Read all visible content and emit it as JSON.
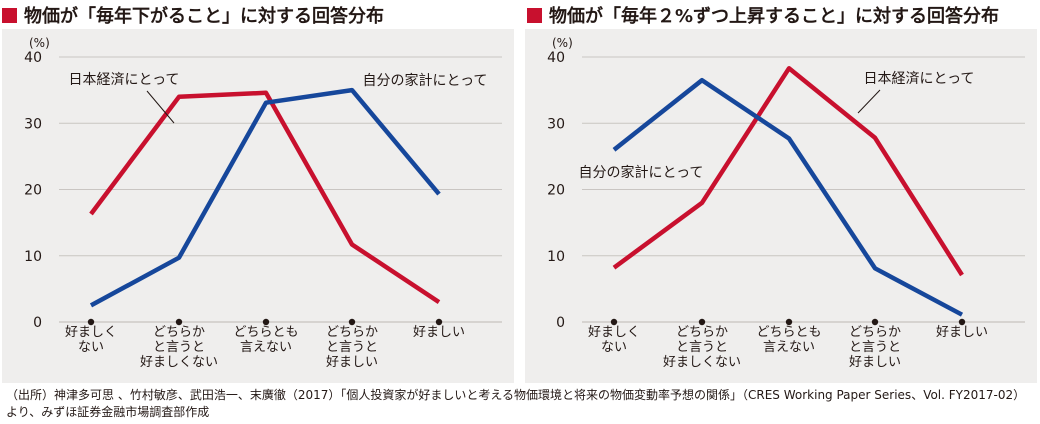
{
  "colors": {
    "red": "#c8102e",
    "blue": "#16479b",
    "background": "#efeeed",
    "grid": "#c9c5c2",
    "square": "#c8102e"
  },
  "categories": [
    [
      "好ましく",
      "ない"
    ],
    [
      "どちらか",
      "と言うと",
      "好ましくない"
    ],
    [
      "どちらとも",
      "言えない"
    ],
    [
      "どちらか",
      "と言うと",
      "好ましい"
    ],
    [
      "好ましい"
    ]
  ],
  "chart_data": [
    {
      "type": "line",
      "title": "物価が「毎年下がること」に対する回答分布",
      "ylabel": "(%)",
      "ylim": [
        0,
        40
      ],
      "yticks": [
        0,
        10,
        20,
        30,
        40
      ],
      "categories": [
        "好ましくない",
        "どちらかと言うと好ましくない",
        "どちらとも言えない",
        "どちらかと言うと好ましい",
        "好ましい"
      ],
      "grid": true,
      "series": [
        {
          "name": "日本経済にとって",
          "color": "#c8102e",
          "values": [
            16.3,
            34.0,
            34.6,
            11.7,
            3.0
          ]
        },
        {
          "name": "自分の家計にとって",
          "color": "#16479b",
          "values": [
            2.5,
            9.7,
            33.1,
            35.0,
            19.3
          ]
        }
      ]
    },
    {
      "type": "line",
      "title": "物価が「毎年２%ずつ上昇すること」に対する回答分布",
      "ylabel": "(%)",
      "ylim": [
        0,
        40
      ],
      "yticks": [
        0,
        10,
        20,
        30,
        40
      ],
      "categories": [
        "好ましくない",
        "どちらかと言うと好ましくない",
        "どちらとも言えない",
        "どちらかと言うと好ましい",
        "好ましい"
      ],
      "grid": true,
      "series": [
        {
          "name": "日本経済にとって",
          "color": "#c8102e",
          "values": [
            8.2,
            18.0,
            38.3,
            27.8,
            7.1
          ]
        },
        {
          "name": "自分の家計にとって",
          "color": "#16479b",
          "values": [
            26.0,
            36.5,
            27.7,
            8.1,
            1.1
          ]
        }
      ]
    }
  ],
  "source": {
    "line1": "（出所）神津多可思 、竹村敏彦、武田浩一、末廣徹（2017）「個人投資家が好ましいと考える物価環境と将来の物価変動率予想の関係」（CRES Working Paper Series、Vol. FY2017-02）",
    "line2": "より、みずほ証券金融市場調査部作成"
  }
}
